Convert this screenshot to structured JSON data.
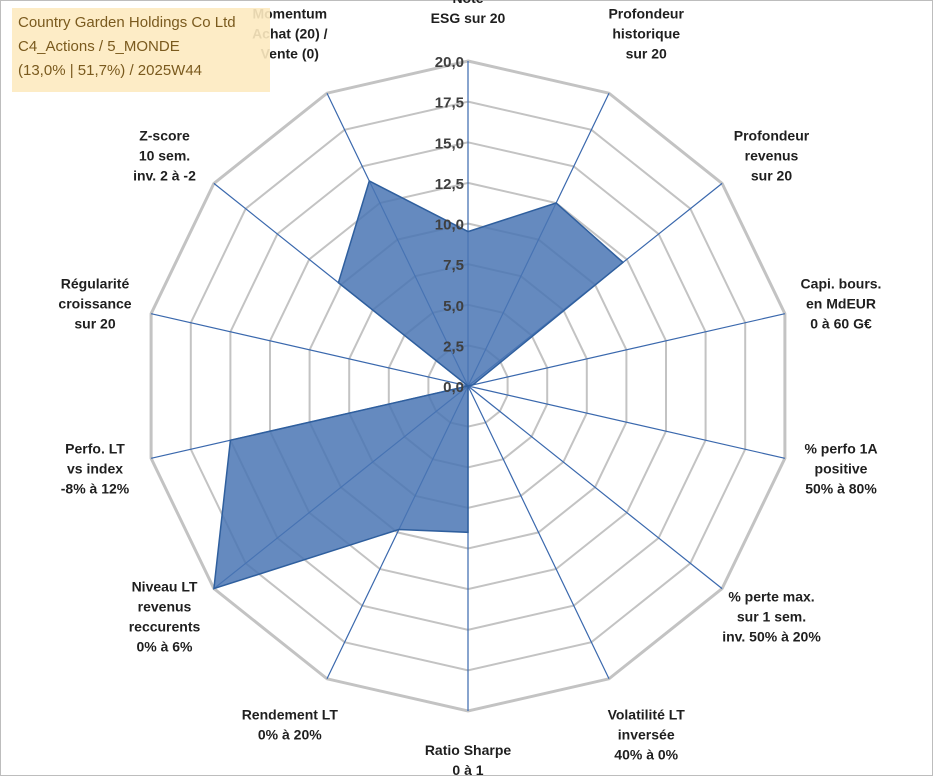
{
  "chart_data": {
    "type": "radar",
    "title_lines": [
      "Country Garden Holdings Co Ltd",
      "C4_Actions / 5_MONDE",
      "(13,0% | 51,7%) / 2025W44"
    ],
    "axes": [
      {
        "lines": [
          "Note",
          "ESG sur 20"
        ]
      },
      {
        "lines": [
          "Profondeur",
          "historique",
          "sur 20"
        ]
      },
      {
        "lines": [
          "Profondeur",
          "revenus",
          "sur 20"
        ]
      },
      {
        "lines": [
          "Capi. bours.",
          "en MdEUR",
          "0 à 60 G€"
        ]
      },
      {
        "lines": [
          "% perfo 1A",
          "positive",
          "50% à 80%"
        ]
      },
      {
        "lines": [
          "% perte max.",
          "sur 1 sem.",
          "inv. 50% à 20%"
        ]
      },
      {
        "lines": [
          "Volatilité LT",
          "inversée",
          "40% à 0%"
        ]
      },
      {
        "lines": [
          "Ratio Sharpe",
          "0 à 1"
        ]
      },
      {
        "lines": [
          "Rendement LT",
          "0% à 20%"
        ]
      },
      {
        "lines": [
          "Niveau LT",
          "revenus",
          "reccurents",
          "0% à 6%"
        ]
      },
      {
        "lines": [
          "Perfo. LT",
          "vs index",
          "-8% à 12%"
        ]
      },
      {
        "lines": [
          "Régularité",
          "croissance",
          "sur 20"
        ]
      },
      {
        "lines": [
          "Z-score",
          "10 sem.",
          "inv. 2 à -2"
        ]
      },
      {
        "lines": [
          "Momentum",
          "Achat (20) /",
          "Vente (0)"
        ]
      }
    ],
    "series": [
      {
        "name": "Country Garden Holdings Co Ltd",
        "values": [
          9.5,
          12.5,
          12.2,
          0.3,
          0,
          0,
          0,
          9.0,
          9.8,
          20.0,
          15.0,
          0,
          10.2,
          14.0
        ]
      }
    ],
    "rmin": 0,
    "rmax": 20,
    "ticks": [
      "0,0",
      "2,5",
      "5,0",
      "7,5",
      "10,0",
      "12,5",
      "15,0",
      "17,5",
      "20,0"
    ],
    "tick_values": [
      0,
      2.5,
      5,
      7.5,
      10,
      12.5,
      15,
      17.5,
      20
    ],
    "colors": {
      "fill": "#4a76b4",
      "stroke": "#2f5f9e",
      "grid": "#c3c3c3",
      "spoke": "#3a68ad"
    }
  }
}
